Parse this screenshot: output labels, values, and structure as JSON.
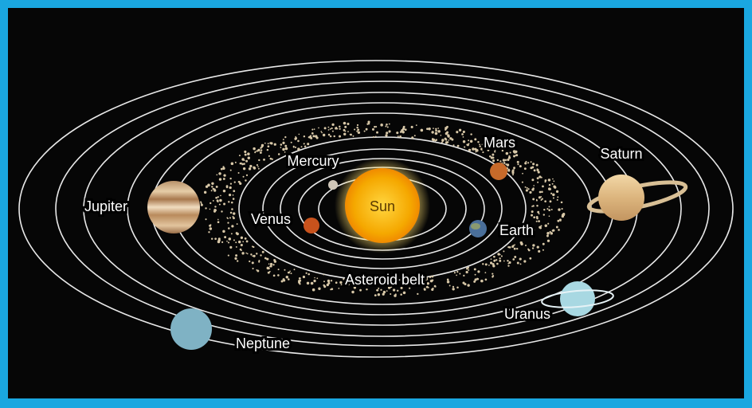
{
  "labels": {
    "sun": "Sun",
    "mercury": "Mercury",
    "venus": "Venus",
    "earth": "Earth",
    "mars": "Mars",
    "asteroid_belt": "Asteroid belt",
    "jupiter": "Jupiter",
    "saturn": "Saturn",
    "uranus": "Uranus",
    "neptune": "Neptune"
  }
}
